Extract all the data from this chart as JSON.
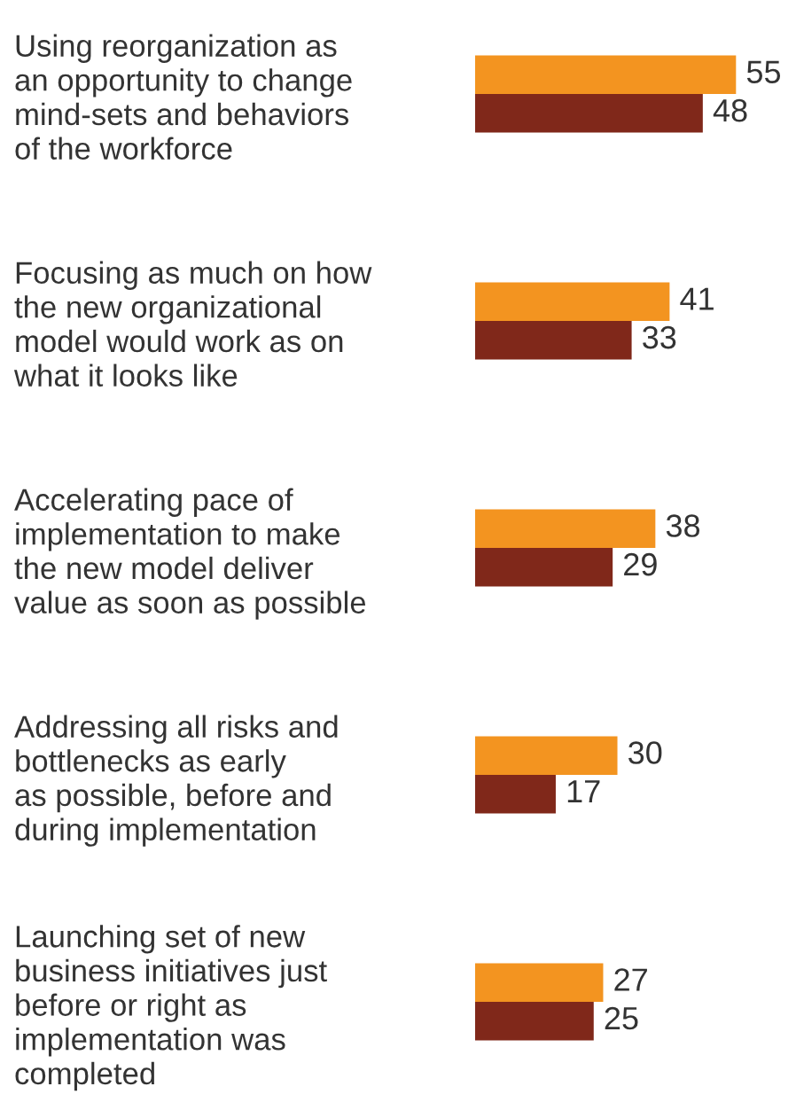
{
  "chart_data": {
    "type": "bar",
    "orientation": "horizontal",
    "categories": [
      "Using reorganization as\nan opportunity to change\nmind-sets and behaviors\nof the workforce",
      "Focusing as much on how\nthe new organizational\nmodel would work as on\nwhat it looks like",
      "Accelerating pace of\nimplementation to make\nthe new model deliver\nvalue as soon as possible",
      "Addressing all risks and\nbottlenecks as early\nas possible, before and\nduring implementation",
      "Launching set of new\nbusiness initiatives just\nbefore or right as\nimplementation was\ncompleted"
    ],
    "series": [
      {
        "color": "#f39420",
        "values": [
          55,
          41,
          38,
          30,
          27
        ]
      },
      {
        "color": "#80281a",
        "values": [
          48,
          33,
          29,
          17,
          25
        ]
      }
    ],
    "data_labels": true,
    "grid": false,
    "legend": false
  }
}
